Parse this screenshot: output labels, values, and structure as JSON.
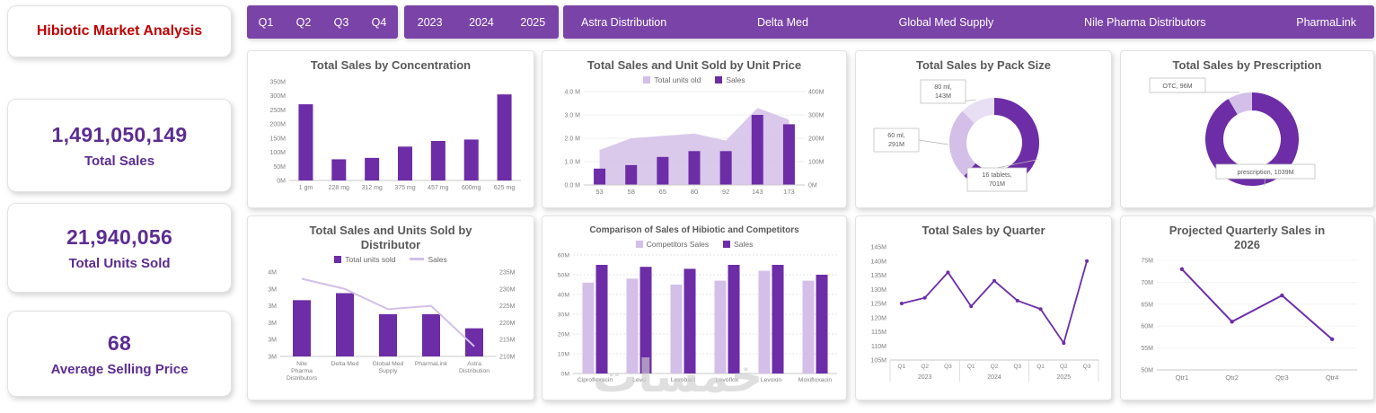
{
  "colors": {
    "primary": "#6C2DA7",
    "light": "#D3BFE8",
    "lighter": "#E9DFF4",
    "slicer": "#7A43A8",
    "kpi": "#5C2D91",
    "red": "#C00000",
    "titleGray": "#595959",
    "axisGray": "#808080"
  },
  "sidebar": {
    "title": "Hibiotic Market Analysis",
    "kpis": [
      {
        "value": "1,491,050,149",
        "label": "Total Sales"
      },
      {
        "value": "21,940,056",
        "label": "Total Units Sold"
      },
      {
        "value": "68",
        "label": "Average Selling Price"
      }
    ]
  },
  "slicers": {
    "quarters": [
      "Q1",
      "Q2",
      "Q3",
      "Q4"
    ],
    "years": [
      "2023",
      "2024",
      "2025"
    ],
    "distributors": [
      "Astra Distribution",
      "Delta Med",
      "Global Med Supply",
      "Nile Pharma Distributors",
      "PharmaLink"
    ]
  },
  "watermark": "خمسات",
  "chart_data": [
    {
      "id": "sales-by-concentration",
      "type": "bar",
      "title": "Total Sales by Concentration",
      "categories": [
        "1 gm",
        "228 mg",
        "312 mg",
        "375 mg",
        "457 mg",
        "600mg",
        "625 mg"
      ],
      "values": [
        270,
        75,
        80,
        120,
        140,
        145,
        305
      ],
      "unit": "M",
      "ylim": [
        0,
        350
      ],
      "ystep": 50,
      "ytick_labels": [
        "0M",
        "50M",
        "100M",
        "150M",
        "200M",
        "250M",
        "300M",
        "350M"
      ]
    },
    {
      "id": "sales-units-by-unit-price",
      "type": "combo-area-bar",
      "title": "Total Sales and Unit Sold by Unit Price",
      "categories": [
        "53",
        "58",
        "65",
        "80",
        "92",
        "143",
        "173"
      ],
      "legend": [
        {
          "name": "Total units old",
          "colorKey": "light",
          "swatch": "square"
        },
        {
          "name": "Sales",
          "colorKey": "primary",
          "swatch": "square"
        }
      ],
      "area_series": {
        "name": "Total units old",
        "values": [
          1.5,
          2.0,
          2.1,
          2.2,
          1.9,
          3.3,
          2.8
        ]
      },
      "bar_series": {
        "name": "Sales",
        "values": [
          0.7,
          0.85,
          1.2,
          1.45,
          1.45,
          3.0,
          2.6
        ]
      },
      "left_ylim": [
        0,
        4
      ],
      "left_tick_labels": [
        "0.0 M",
        "1.0 M",
        "2.0 M",
        "3.0 M",
        "4.0 M"
      ],
      "right_tick_labels": [
        "0M",
        "100M",
        "200M",
        "300M",
        "400M"
      ]
    },
    {
      "id": "sales-by-pack-size",
      "type": "donut",
      "title": "Total Sales by Pack Size",
      "slices": [
        {
          "label": "16 tablets, 701M",
          "value": 701,
          "colorKey": "primary"
        },
        {
          "label": "60 ml, 291M",
          "value": 291,
          "colorKey": "light"
        },
        {
          "label": "80 ml, 143M",
          "value": 143,
          "colorKey": "lighter"
        }
      ]
    },
    {
      "id": "sales-by-prescription",
      "type": "donut",
      "title": "Total Sales by Prescription",
      "slices": [
        {
          "label": "prescription, 1039M",
          "value": 1039,
          "colorKey": "primary"
        },
        {
          "label": "OTC, 96M",
          "value": 96,
          "colorKey": "light"
        }
      ]
    },
    {
      "id": "sales-units-by-distributor",
      "type": "combo-bar-line",
      "title": "Total Sales and Units Sold by Distributor",
      "categories": [
        "Nile Pharma Distributors",
        "Delta Med",
        "Global Med Supply",
        "PharmaLink",
        "Astra Distribution"
      ],
      "legend": [
        {
          "name": "Total units sold",
          "colorKey": "primary",
          "swatch": "square"
        },
        {
          "name": "Sales",
          "colorKey": "light",
          "swatch": "line"
        }
      ],
      "bar_series": {
        "name": "Total units sold",
        "values": [
          3.6,
          3.7,
          3.4,
          3.4,
          3.2
        ],
        "axis_min": 2.8,
        "axis_max": 4.0
      },
      "line_series": {
        "name": "Sales",
        "values": [
          233,
          230,
          224,
          225,
          213
        ],
        "axis_min": 210,
        "axis_max": 235
      },
      "left_tick_labels": [
        "4M",
        "3M",
        "3M",
        "3M",
        "3M",
        "3M"
      ],
      "right_tick_labels": [
        "235M",
        "230M",
        "225M",
        "220M",
        "215M",
        "210M"
      ]
    },
    {
      "id": "comparison-hibiotic-competitors",
      "type": "grouped-bar",
      "title": "Comparison of Sales of Hibiotic and Competitors",
      "categories": [
        "Ciprofloxacin",
        "Levo",
        "Levobact",
        "Levoflox",
        "Levoxin",
        "Moxifloxacin"
      ],
      "series": [
        {
          "name": "Competitors Sales",
          "values": [
            46,
            48,
            45,
            47,
            52,
            47
          ],
          "colorKey": "light"
        },
        {
          "name": "Sales",
          "values": [
            55,
            54,
            53,
            55,
            55,
            50
          ],
          "colorKey": "primary"
        }
      ],
      "ylim": [
        0,
        60
      ],
      "ystep": 10,
      "ytick_labels": [
        "0M",
        "10M",
        "20M",
        "30M",
        "40M",
        "50M",
        "60M"
      ]
    },
    {
      "id": "total-sales-by-quarter",
      "type": "line-grouped",
      "title": "Total Sales by Quarter",
      "groups": [
        {
          "label": "2023",
          "categories": [
            "Q1",
            "Q2",
            "Q3"
          ]
        },
        {
          "label": "2024",
          "categories": [
            "Q1",
            "Q2",
            "Q3"
          ]
        },
        {
          "label": "2025",
          "categories": [
            "Q1",
            "Q2",
            "Q3"
          ]
        }
      ],
      "values": [
        125,
        127,
        136,
        124,
        133,
        126,
        123,
        111,
        140
      ],
      "ylim": [
        105,
        145
      ],
      "ystep": 5,
      "ytick_labels": [
        "105M",
        "110M",
        "115M",
        "120M",
        "125M",
        "130M",
        "135M",
        "140M",
        "145M"
      ]
    },
    {
      "id": "projected-quarterly-sales-2026",
      "type": "line",
      "title": "Projected Quarterly Sales in 2026",
      "categories": [
        "Qtr1",
        "Qtr2",
        "Qtr3",
        "Qtr4"
      ],
      "values": [
        73,
        61,
        67,
        57
      ],
      "ylim": [
        50,
        75
      ],
      "ystep": 5,
      "ytick_labels": [
        "50M",
        "55M",
        "60M",
        "65M",
        "70M",
        "75M"
      ]
    }
  ]
}
